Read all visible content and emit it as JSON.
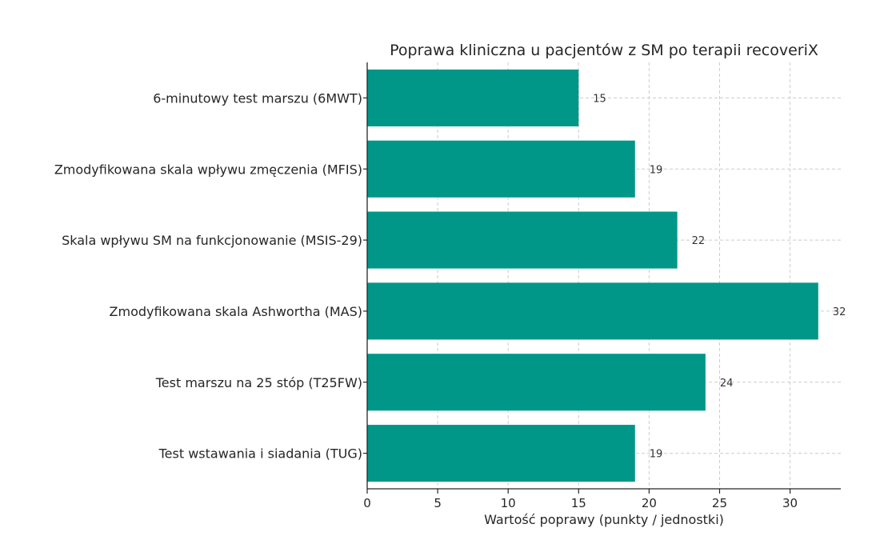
{
  "colors": {
    "bar": "#009688",
    "text": "#262626",
    "grid": "#cccccc"
  },
  "chart_data": {
    "type": "bar",
    "orientation": "horizontal",
    "title": "Poprawa kliniczna u pacjentów z SM po terapii recoveriX",
    "xlabel": "Wartość poprawy (punkty / jednostki)",
    "ylabel": "",
    "categories": [
      "6-minutowy test marszu (6MWT)",
      "Zmodyfikowana skala wpływu zmęczenia (MFIS)",
      "Skala wpływu SM na funkcjonowanie (MSIS-29)",
      "Zmodyfikowana skala Ashwortha (MAS)",
      "Test marszu na 25 stóp (T25FW)",
      "Test wstawania i siadania (TUG)"
    ],
    "values": [
      15,
      19,
      22,
      32,
      24,
      19
    ],
    "xlim": [
      0,
      33.6
    ],
    "xticks": [
      0,
      5,
      10,
      15,
      20,
      25,
      30
    ],
    "grid": true,
    "data_labels": true
  }
}
